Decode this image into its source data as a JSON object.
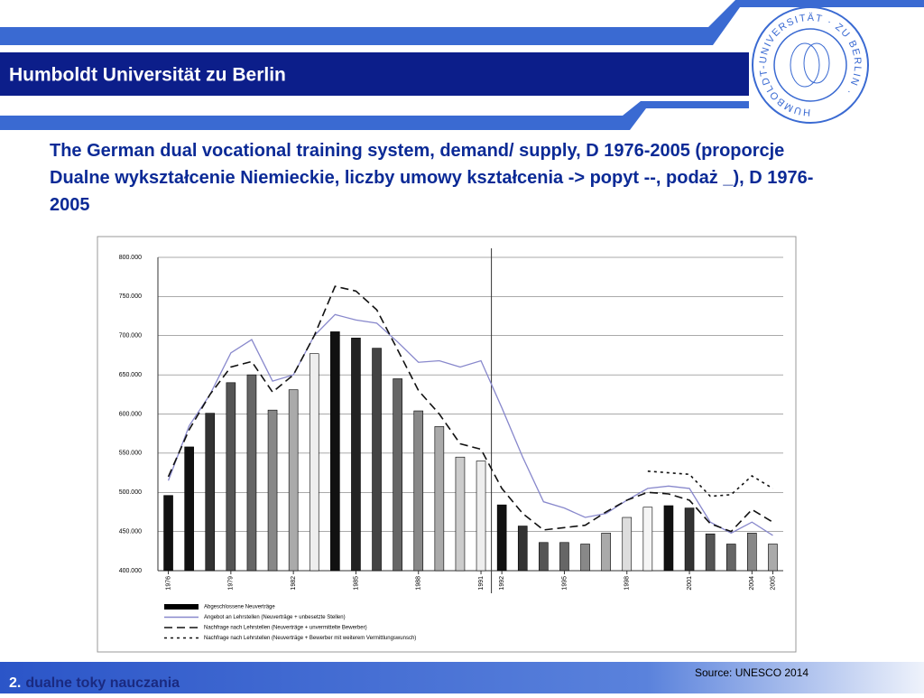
{
  "header": {
    "title": "Humboldt Universität zu Berlin",
    "logo_text": "HUMBOLDT-UNIVERSITÄT · ZU BERLIN ·"
  },
  "slide_title": "The German dual vocational training system, demand/ supply, D 1976-2005 (proporcje Dualne wykształcenie Niemieckie, liczby umowy kształcenia -> popyt --, podaż _), D 1976-2005",
  "chart_data": {
    "type": "bar",
    "categories": [
      "1976",
      null,
      null,
      "1979",
      null,
      null,
      "1982",
      null,
      null,
      "1985",
      null,
      null,
      "1988",
      null,
      null,
      "1991",
      "1992",
      null,
      null,
      "1995",
      null,
      null,
      "1998",
      null,
      null,
      "2001",
      null,
      null,
      "2004",
      "2005"
    ],
    "ylim": [
      400000,
      800000
    ],
    "yticks": [
      {
        "value": 400000,
        "label": "400.000"
      },
      {
        "value": 450000,
        "label": "450.000"
      },
      {
        "value": 500000,
        "label": "500.000"
      },
      {
        "value": 550000,
        "label": "550.000"
      },
      {
        "value": 600000,
        "label": "600.000"
      },
      {
        "value": 650000,
        "label": "650.000"
      },
      {
        "value": 700000,
        "label": "700.000"
      },
      {
        "value": 750000,
        "label": "750.000"
      },
      {
        "value": 800000,
        "label": "800.000"
      }
    ],
    "grid": true,
    "bar_colors": [
      "#111",
      "#111",
      "#333",
      "#555",
      "#666",
      "#888",
      "#aaa",
      "#eee",
      "#111",
      "#222",
      "#444",
      "#666",
      "#888",
      "#aaa",
      "#ccc",
      "#eee",
      "#111",
      "#333",
      "#555",
      "#666",
      "#888",
      "#aaa",
      "#ddd",
      "#f5f5f5",
      "#111",
      "#333",
      "#555",
      "#666",
      "#888",
      "#aaa"
    ],
    "series": [
      {
        "name": "Abgeschlossene Neuverträge",
        "color": "#000000",
        "values": [
          496000,
          558000,
          601000,
          640000,
          650000,
          605000,
          631000,
          677000,
          705000,
          697000,
          684000,
          645000,
          604000,
          584000,
          545000,
          540000,
          484000,
          457000,
          436000,
          436000,
          434000,
          448000,
          468000,
          481000,
          483000,
          480000,
          447000,
          434000,
          448000,
          434000
        ]
      },
      {
        "name": "Angebot an Lehrstellen (Neuverträge + unbesetzte Stellen)",
        "color": "#8888cc",
        "dash": "none",
        "values": [
          515000,
          585000,
          625000,
          678000,
          695000,
          642000,
          650000,
          700000,
          727000,
          720000,
          716000,
          692000,
          666000,
          668000,
          660000,
          668000,
          608000,
          545000,
          488000,
          480000,
          468000,
          473000,
          490000,
          505000,
          508000,
          505000,
          462000,
          448000,
          462000,
          445000
        ]
      },
      {
        "name": "Nachfrage nach Lehrstellen (Neuverträge + unvermittelte Bewerber)",
        "color": "#111111",
        "dash": "9 5",
        "values": [
          520000,
          580000,
          625000,
          660000,
          667000,
          628000,
          650000,
          700000,
          763000,
          757000,
          733000,
          682000,
          630000,
          600000,
          562000,
          555000,
          505000,
          473000,
          452000,
          455000,
          458000,
          475000,
          490000,
          500000,
          498000,
          490000,
          460000,
          450000,
          478000,
          462000
        ]
      },
      {
        "name": "Nachfrage nach Lehrstellen (Neuverträge + Bewerber mit weiterem Vermittlungswunsch)",
        "color": "#111111",
        "dash": "3 4",
        "values": [
          null,
          null,
          null,
          null,
          null,
          null,
          null,
          null,
          null,
          null,
          null,
          null,
          null,
          null,
          null,
          null,
          null,
          null,
          null,
          null,
          null,
          null,
          null,
          527000,
          525000,
          523000,
          495000,
          497000,
          521000,
          505000
        ]
      }
    ]
  },
  "footer": {
    "number": "2.",
    "text": "dualne toky nauczania"
  },
  "source": "Source: UNESCO 2014"
}
